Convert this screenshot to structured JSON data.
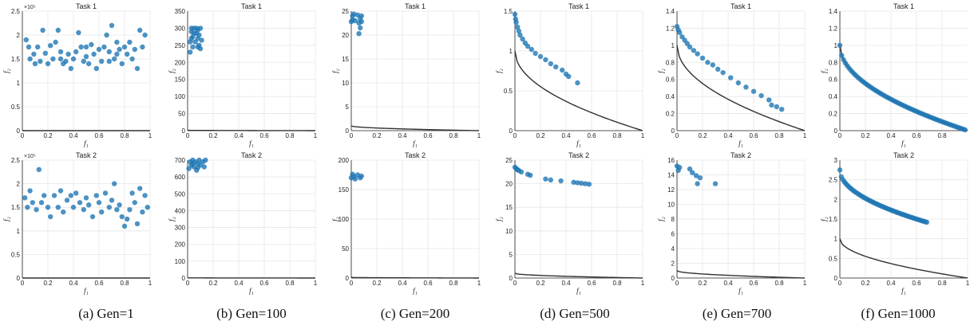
{
  "captions": [
    "(a)  Gen=1",
    "(b)  Gen=100",
    "(c)  Gen=200",
    "(d)  Gen=500",
    "(e)  Gen=700",
    "(f)  Gen=1000"
  ],
  "colors": {
    "points": "#1f77b4",
    "front": "#303030",
    "grid": "#e6e6e6",
    "axes": "#222222"
  },
  "chart_data": [
    {
      "type": "scatter",
      "title": "Task 1",
      "xlabel": "f1",
      "ylabel": "f2",
      "xlim": [
        0,
        1
      ],
      "ylim": [
        0,
        250000
      ],
      "xticks": [
        "0",
        "0.2",
        "0.4",
        "0.6",
        "0.8",
        "1"
      ],
      "yticks": [
        "0",
        "0.5",
        "1",
        "1.5",
        "2",
        "2.5"
      ],
      "multiplier": "×10⁵",
      "yscale": 100000,
      "grid": true,
      "front": true,
      "points": [
        [
          0.03,
          190000
        ],
        [
          0.05,
          175000
        ],
        [
          0.06,
          150000
        ],
        [
          0.09,
          160000
        ],
        [
          0.1,
          140000
        ],
        [
          0.12,
          175000
        ],
        [
          0.14,
          145000
        ],
        [
          0.16,
          210000
        ],
        [
          0.18,
          162000
        ],
        [
          0.2,
          140000
        ],
        [
          0.22,
          178000
        ],
        [
          0.24,
          150000
        ],
        [
          0.26,
          185000
        ],
        [
          0.28,
          210000
        ],
        [
          0.3,
          165000
        ],
        [
          0.32,
          140000
        ],
        [
          0.34,
          145000
        ],
        [
          0.36,
          160000
        ],
        [
          0.38,
          130000
        ],
        [
          0.4,
          150000
        ],
        [
          0.42,
          165000
        ],
        [
          0.44,
          205000
        ],
        [
          0.46,
          175000
        ],
        [
          0.48,
          145000
        ],
        [
          0.5,
          155000
        ],
        [
          0.52,
          140000
        ],
        [
          0.54,
          180000
        ],
        [
          0.56,
          160000
        ],
        [
          0.58,
          130000
        ],
        [
          0.6,
          170000
        ],
        [
          0.62,
          145000
        ],
        [
          0.64,
          175000
        ],
        [
          0.66,
          200000
        ],
        [
          0.68,
          165000
        ],
        [
          0.7,
          220000
        ],
        [
          0.72,
          150000
        ],
        [
          0.74,
          185000
        ],
        [
          0.76,
          170000
        ],
        [
          0.78,
          140000
        ],
        [
          0.8,
          175000
        ],
        [
          0.82,
          160000
        ],
        [
          0.84,
          185000
        ],
        [
          0.86,
          150000
        ],
        [
          0.88,
          170000
        ],
        [
          0.9,
          130000
        ],
        [
          0.92,
          210000
        ],
        [
          0.94,
          175000
        ],
        [
          0.96,
          200000
        ],
        [
          0.3,
          150000
        ],
        [
          0.5,
          175000
        ],
        [
          0.68,
          145000
        ],
        [
          0.74,
          160000
        ]
      ]
    },
    {
      "type": "scatter",
      "title": "Task 1",
      "xlabel": "f1",
      "ylabel": "f2",
      "xlim": [
        0,
        1
      ],
      "ylim": [
        0,
        350
      ],
      "xticks": [
        "0",
        "0.2",
        "0.4",
        "0.6",
        "0.8",
        "1"
      ],
      "yticks": [
        "0",
        "50",
        "100",
        "150",
        "200",
        "250",
        "300",
        "350"
      ],
      "grid": true,
      "front": true,
      "points": [
        [
          0.02,
          230
        ],
        [
          0.02,
          260
        ],
        [
          0.03,
          290
        ],
        [
          0.03,
          300
        ],
        [
          0.04,
          245
        ],
        [
          0.04,
          275
        ],
        [
          0.05,
          300
        ],
        [
          0.06,
          260
        ],
        [
          0.07,
          285
        ],
        [
          0.07,
          300
        ],
        [
          0.08,
          270
        ],
        [
          0.08,
          295
        ],
        [
          0.09,
          250
        ],
        [
          0.09,
          280
        ],
        [
          0.1,
          300
        ],
        [
          0.1,
          240
        ],
        [
          0.11,
          265
        ],
        [
          0.05,
          285
        ],
        [
          0.03,
          270
        ],
        [
          0.08,
          245
        ]
      ]
    },
    {
      "type": "scatter",
      "title": "Task 1",
      "xlabel": "f1",
      "ylabel": "f2",
      "xlim": [
        0,
        1
      ],
      "ylim": [
        0,
        25
      ],
      "xticks": [
        "0",
        "0.2",
        "0.4",
        "0.6",
        "0.8",
        "1"
      ],
      "yticks": [
        "0",
        "5",
        "10",
        "15",
        "20",
        "25"
      ],
      "grid": true,
      "front": true,
      "points": [
        [
          0.0,
          22.8
        ],
        [
          0.01,
          24.0
        ],
        [
          0.01,
          23.2
        ],
        [
          0.02,
          24.4
        ],
        [
          0.03,
          23.0
        ],
        [
          0.05,
          24.2
        ],
        [
          0.06,
          22.5
        ],
        [
          0.06,
          20.3
        ],
        [
          0.07,
          23.4
        ],
        [
          0.07,
          21.5
        ],
        [
          0.08,
          24.0
        ],
        [
          0.08,
          22.8
        ]
      ]
    },
    {
      "type": "scatter",
      "title": "Task 1",
      "xlabel": "f1",
      "ylabel": "f2",
      "xlim": [
        0,
        1
      ],
      "ylim": [
        0,
        1.5
      ],
      "xticks": [
        "0",
        "0.2",
        "0.4",
        "0.6",
        "0.8",
        "1"
      ],
      "yticks": [
        "0",
        "0.5",
        "1",
        "1.5"
      ],
      "grid": true,
      "front": true,
      "points": [
        [
          0.0,
          1.46
        ],
        [
          0.005,
          1.4
        ],
        [
          0.01,
          1.36
        ],
        [
          0.02,
          1.3
        ],
        [
          0.03,
          1.25
        ],
        [
          0.04,
          1.2
        ],
        [
          0.06,
          1.15
        ],
        [
          0.08,
          1.1
        ],
        [
          0.1,
          1.06
        ],
        [
          0.13,
          1.02
        ],
        [
          0.16,
          0.97
        ],
        [
          0.2,
          0.93
        ],
        [
          0.24,
          0.89
        ],
        [
          0.28,
          0.84
        ],
        [
          0.32,
          0.8
        ],
        [
          0.37,
          0.76
        ],
        [
          0.4,
          0.71
        ],
        [
          0.42,
          0.68
        ],
        [
          0.49,
          0.6
        ]
      ]
    },
    {
      "type": "scatter",
      "title": "Task 1",
      "xlabel": "f1",
      "ylabel": "f2",
      "xlim": [
        0,
        1
      ],
      "ylim": [
        0,
        1.4
      ],
      "xticks": [
        "0",
        "0.2",
        "0.4",
        "0.6",
        "0.8",
        "1"
      ],
      "yticks": [
        "0",
        "0.2",
        "0.4",
        "0.6",
        "0.8",
        "1",
        "1.2",
        "1.4"
      ],
      "grid": true,
      "front": true,
      "points": [
        [
          0.0,
          1.22
        ],
        [
          0.01,
          1.18
        ],
        [
          0.02,
          1.15
        ],
        [
          0.04,
          1.1
        ],
        [
          0.06,
          1.06
        ],
        [
          0.08,
          1.02
        ],
        [
          0.1,
          0.98
        ],
        [
          0.13,
          0.94
        ],
        [
          0.16,
          0.9
        ],
        [
          0.2,
          0.85
        ],
        [
          0.24,
          0.8
        ],
        [
          0.28,
          0.77
        ],
        [
          0.32,
          0.72
        ],
        [
          0.36,
          0.68
        ],
        [
          0.42,
          0.62
        ],
        [
          0.48,
          0.56
        ],
        [
          0.54,
          0.51
        ],
        [
          0.6,
          0.46
        ],
        [
          0.66,
          0.41
        ],
        [
          0.72,
          0.36
        ],
        [
          0.74,
          0.3
        ],
        [
          0.78,
          0.28
        ],
        [
          0.82,
          0.25
        ]
      ]
    },
    {
      "type": "scatter",
      "title": "Task 1",
      "xlabel": "f1",
      "ylabel": "f2",
      "xlim": [
        0,
        1
      ],
      "ylim": [
        0,
        1.4
      ],
      "xticks": [
        "0",
        "0.2",
        "0.4",
        "0.6",
        "0.8"
      ],
      "yticks": [
        "0",
        "0.2",
        "0.4",
        "0.6",
        "0.8",
        "1",
        "1.2",
        "1.4"
      ],
      "grid": true,
      "front": true,
      "front_on_points": true,
      "points_curve": {
        "x0": 0.0,
        "x1": 0.98,
        "n": 70,
        "a": 1.0
      }
    },
    {
      "type": "scatter",
      "title": "Task 2",
      "xlabel": "f1",
      "ylabel": "f2",
      "xlim": [
        0,
        1
      ],
      "ylim": [
        0,
        250000
      ],
      "xticks": [
        "0",
        "0.2",
        "0.4",
        "0.6",
        "0.8",
        "1"
      ],
      "yticks": [
        "0",
        "0.5",
        "1",
        "1.5",
        "2",
        "2.5"
      ],
      "multiplier": "×10⁵",
      "yscale": 100000,
      "grid": true,
      "front": true,
      "points": [
        [
          0.02,
          170000
        ],
        [
          0.04,
          150000
        ],
        [
          0.06,
          185000
        ],
        [
          0.08,
          160000
        ],
        [
          0.11,
          145000
        ],
        [
          0.13,
          230000
        ],
        [
          0.15,
          160000
        ],
        [
          0.17,
          175000
        ],
        [
          0.2,
          150000
        ],
        [
          0.22,
          130000
        ],
        [
          0.25,
          175000
        ],
        [
          0.28,
          150000
        ],
        [
          0.3,
          185000
        ],
        [
          0.32,
          140000
        ],
        [
          0.35,
          165000
        ],
        [
          0.38,
          175000
        ],
        [
          0.4,
          150000
        ],
        [
          0.42,
          180000
        ],
        [
          0.45,
          160000
        ],
        [
          0.48,
          145000
        ],
        [
          0.5,
          170000
        ],
        [
          0.52,
          155000
        ],
        [
          0.55,
          130000
        ],
        [
          0.58,
          175000
        ],
        [
          0.6,
          160000
        ],
        [
          0.62,
          140000
        ],
        [
          0.65,
          180000
        ],
        [
          0.68,
          150000
        ],
        [
          0.7,
          165000
        ],
        [
          0.72,
          200000
        ],
        [
          0.74,
          145000
        ],
        [
          0.76,
          155000
        ],
        [
          0.78,
          130000
        ],
        [
          0.8,
          110000
        ],
        [
          0.82,
          125000
        ],
        [
          0.84,
          145000
        ],
        [
          0.86,
          180000
        ],
        [
          0.88,
          160000
        ],
        [
          0.9,
          115000
        ],
        [
          0.92,
          190000
        ],
        [
          0.94,
          140000
        ],
        [
          0.96,
          175000
        ],
        [
          0.98,
          150000
        ]
      ]
    },
    {
      "type": "scatter",
      "title": "Task 2",
      "xlabel": "f1",
      "ylabel": "f2",
      "xlim": [
        0,
        1
      ],
      "ylim": [
        0,
        700
      ],
      "xticks": [
        "0",
        "0.2",
        "0.4",
        "0.6",
        "0.8",
        "1"
      ],
      "yticks": [
        "0",
        "100",
        "200",
        "300",
        "400",
        "500",
        "600",
        "700"
      ],
      "grid": true,
      "front": true,
      "points": [
        [
          0.01,
          650
        ],
        [
          0.02,
          690
        ],
        [
          0.03,
          670
        ],
        [
          0.04,
          700
        ],
        [
          0.05,
          660
        ],
        [
          0.06,
          690
        ],
        [
          0.07,
          640
        ],
        [
          0.08,
          680
        ],
        [
          0.09,
          700
        ],
        [
          0.1,
          670
        ],
        [
          0.12,
          690
        ],
        [
          0.13,
          660
        ],
        [
          0.14,
          700
        ],
        [
          0.08,
          655
        ],
        [
          0.04,
          680
        ]
      ]
    },
    {
      "type": "scatter",
      "title": "Task 2",
      "xlabel": "f1",
      "ylabel": "f2",
      "xlim": [
        0,
        1
      ],
      "ylim": [
        0,
        200
      ],
      "xticks": [
        "0",
        "0.2",
        "0.4",
        "0.6",
        "0.8",
        "1"
      ],
      "yticks": [
        "0",
        "50",
        "100",
        "150",
        "200"
      ],
      "grid": true,
      "front": true,
      "points": [
        [
          0.0,
          170
        ],
        [
          0.01,
          176
        ],
        [
          0.02,
          172
        ],
        [
          0.03,
          168
        ],
        [
          0.05,
          175
        ],
        [
          0.07,
          170
        ],
        [
          0.08,
          173
        ]
      ]
    },
    {
      "type": "scatter",
      "title": "Task 2",
      "xlabel": "f1",
      "ylabel": "f2",
      "xlim": [
        0,
        1
      ],
      "ylim": [
        0,
        25
      ],
      "xticks": [
        "0",
        "0.2",
        "0.4",
        "0.6",
        "0.8",
        "1"
      ],
      "yticks": [
        "0",
        "5",
        "10",
        "15",
        "20",
        "25"
      ],
      "grid": true,
      "front": true,
      "points": [
        [
          0.0,
          23.5
        ],
        [
          0.01,
          23.2
        ],
        [
          0.02,
          23.0
        ],
        [
          0.03,
          22.8
        ],
        [
          0.05,
          22.5
        ],
        [
          0.1,
          22.0
        ],
        [
          0.12,
          21.8
        ],
        [
          0.24,
          21.0
        ],
        [
          0.28,
          20.8
        ],
        [
          0.36,
          20.6
        ],
        [
          0.46,
          20.3
        ],
        [
          0.49,
          20.2
        ],
        [
          0.52,
          20.1
        ],
        [
          0.55,
          20.0
        ],
        [
          0.58,
          19.9
        ]
      ]
    },
    {
      "type": "scatter",
      "title": "Task 2",
      "xlabel": "f1",
      "ylabel": "f2",
      "xlim": [
        0,
        1
      ],
      "ylim": [
        0,
        16
      ],
      "xticks": [
        "0",
        "0.2",
        "0.4",
        "0.6",
        "0.8",
        "1"
      ],
      "yticks": [
        "0",
        "2",
        "4",
        "6",
        "8",
        "10",
        "12",
        "14",
        "16"
      ],
      "grid": true,
      "front": true,
      "points": [
        [
          0.0,
          15.2
        ],
        [
          0.01,
          14.6
        ],
        [
          0.02,
          15.0
        ],
        [
          0.1,
          14.8
        ],
        [
          0.12,
          14.3
        ],
        [
          0.15,
          13.9
        ],
        [
          0.16,
          12.8
        ],
        [
          0.18,
          13.6
        ],
        [
          0.3,
          12.8
        ]
      ]
    },
    {
      "type": "scatter",
      "title": "Task 2",
      "xlabel": "f1",
      "ylabel": "f2",
      "xlim": [
        0,
        1
      ],
      "ylim": [
        0,
        3
      ],
      "xticks": [
        "0",
        "0.2",
        "0.4",
        "0.6",
        "0.8",
        "1"
      ],
      "yticks": [
        "0",
        "0.5",
        "1",
        "1.5",
        "2",
        "2.5",
        "3"
      ],
      "grid": true,
      "front": true,
      "points_curve": {
        "x0": 0.0,
        "x1": 0.68,
        "n": 60,
        "a": 1.35,
        "b": 1.42,
        "type": "line"
      }
    }
  ]
}
